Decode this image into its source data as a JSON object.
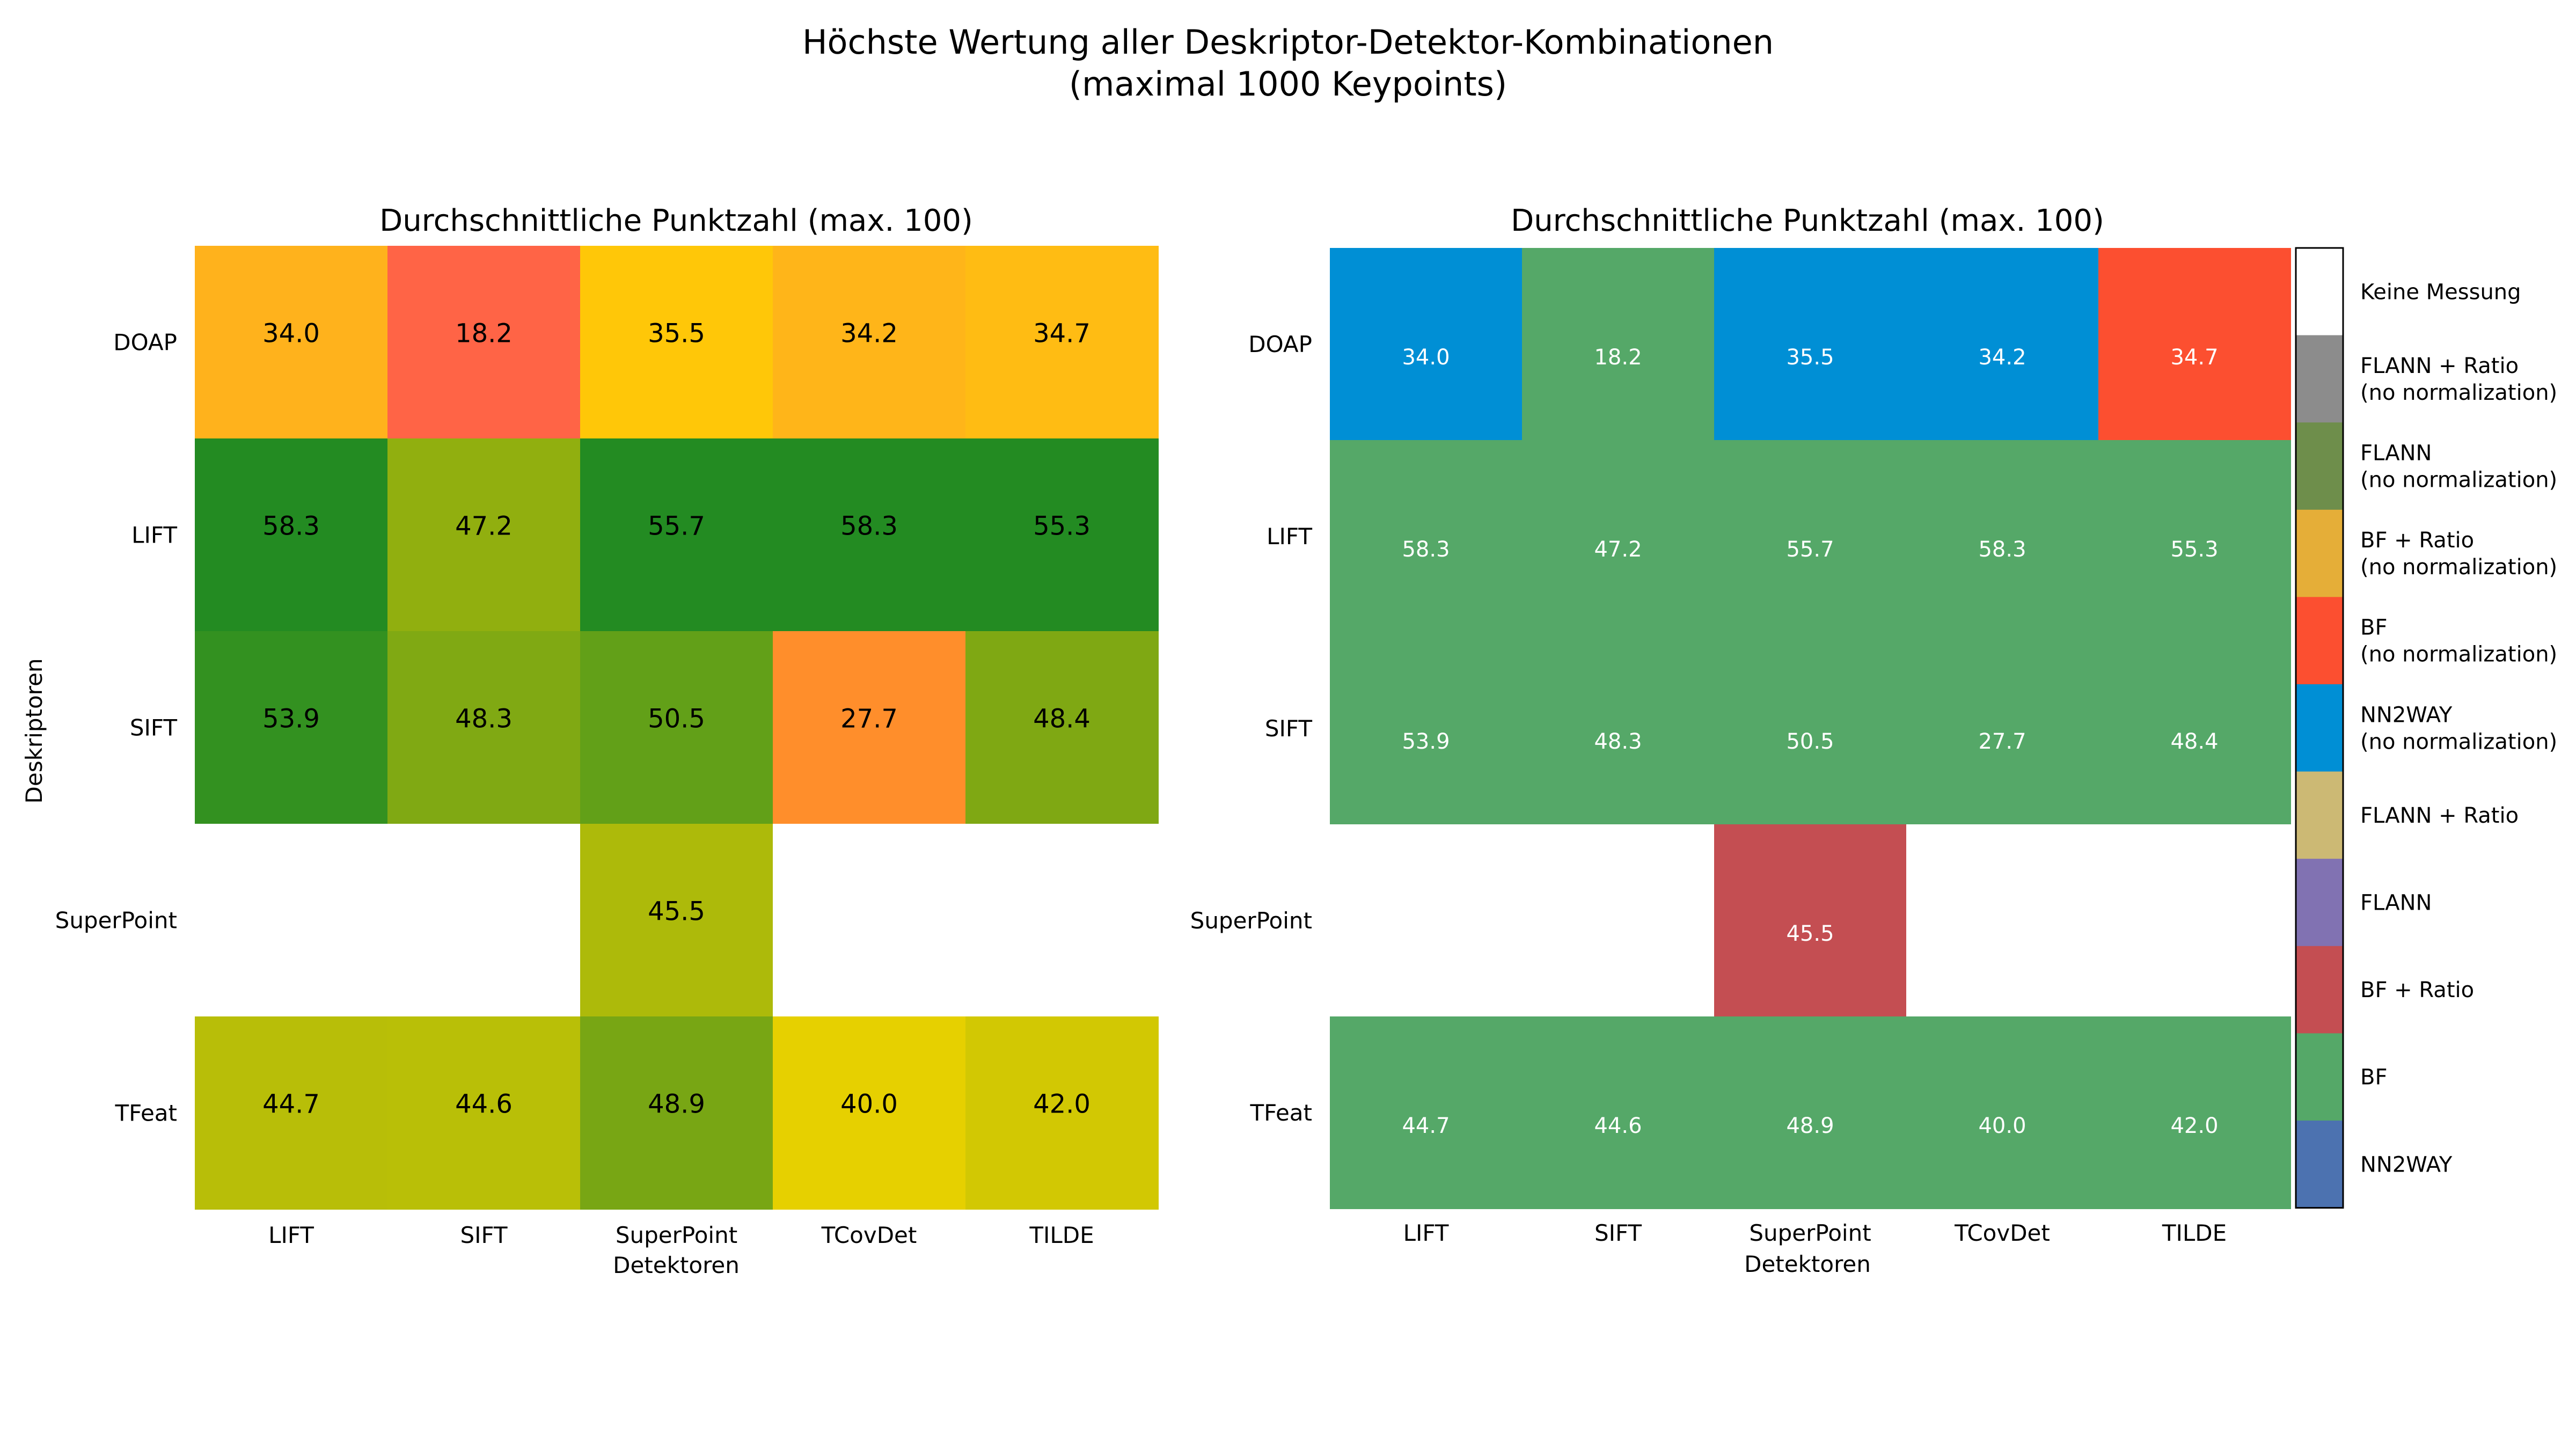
{
  "figure": {
    "title_line1": "Höchste Wertung aller Deskriptor-Detektor-Kombinationen",
    "title_line2": "(maximal 1000 Keypoints)"
  },
  "chart_data": [
    {
      "type": "heatmap",
      "title": "Durchschnittliche Punktzahl (max. 100)",
      "xlabel": "Detektoren",
      "ylabel": "Deskriptoren",
      "x": [
        "LIFT",
        "SIFT",
        "SuperPoint",
        "TCovDet",
        "TILDE"
      ],
      "y": [
        "DOAP",
        "LIFT",
        "SIFT",
        "SuperPoint",
        "TFeat"
      ],
      "values": [
        [
          34.0,
          18.2,
          35.5,
          34.2,
          34.7
        ],
        [
          58.3,
          47.2,
          55.7,
          58.3,
          55.3
        ],
        [
          53.9,
          48.3,
          50.5,
          27.7,
          48.4
        ],
        [
          null,
          null,
          45.5,
          null,
          null
        ],
        [
          44.7,
          44.6,
          48.9,
          40.0,
          42.0
        ]
      ],
      "labels": [
        [
          "34.0",
          "18.2",
          "35.5",
          "34.2",
          "34.7"
        ],
        [
          "58.3",
          "47.2",
          "55.7",
          "58.3",
          "55.3"
        ],
        [
          "53.9",
          "48.3",
          "50.5",
          "27.7",
          "48.4"
        ],
        [
          "",
          "",
          "45.5",
          "",
          ""
        ],
        [
          "44.7",
          "44.6",
          "48.9",
          "40.0",
          "42.0"
        ]
      ],
      "colormap": "red-yellow-green",
      "color_stops": [
        {
          "value": 18,
          "color": "#ff6347"
        },
        {
          "value": 28,
          "color": "#ff8f2a"
        },
        {
          "value": 34,
          "color": "#ffb21c"
        },
        {
          "value": 35.5,
          "color": "#ffc708"
        },
        {
          "value": 40,
          "color": "#e6d000"
        },
        {
          "value": 45,
          "color": "#b5bd08"
        },
        {
          "value": 48,
          "color": "#84aa12"
        },
        {
          "value": 52,
          "color": "#4e9a1c"
        },
        {
          "value": 55,
          "color": "#238b22"
        }
      ]
    },
    {
      "type": "heatmap",
      "title": "Durchschnittliche Punktzahl (max. 100)",
      "xlabel": "Detektoren",
      "x": [
        "LIFT",
        "SIFT",
        "SuperPoint",
        "TCovDet",
        "TILDE"
      ],
      "y": [
        "DOAP",
        "LIFT",
        "SIFT",
        "SuperPoint",
        "TFeat"
      ],
      "values": [
        [
          34.0,
          18.2,
          35.5,
          34.2,
          34.7
        ],
        [
          58.3,
          47.2,
          55.7,
          58.3,
          55.3
        ],
        [
          53.9,
          48.3,
          50.5,
          27.7,
          48.4
        ],
        [
          null,
          null,
          45.5,
          null,
          null
        ],
        [
          44.7,
          44.6,
          48.9,
          40.0,
          42.0
        ]
      ],
      "labels": [
        [
          "34.0",
          "18.2",
          "35.5",
          "34.2",
          "34.7"
        ],
        [
          "58.3",
          "47.2",
          "55.7",
          "58.3",
          "55.3"
        ],
        [
          "53.9",
          "48.3",
          "50.5",
          "27.7",
          "48.4"
        ],
        [
          "",
          "",
          "45.5",
          "",
          ""
        ],
        [
          "44.7",
          "44.6",
          "48.9",
          "40.0",
          "42.0"
        ]
      ],
      "categories_grid": [
        [
          5,
          9,
          5,
          5,
          4
        ],
        [
          9,
          9,
          9,
          9,
          9
        ],
        [
          9,
          9,
          9,
          9,
          9
        ],
        [
          0,
          0,
          8,
          0,
          0
        ],
        [
          9,
          9,
          9,
          9,
          9
        ]
      ],
      "legend": {
        "placement": "right",
        "entries": [
          {
            "label": "Keine Messung",
            "color": "#ffffff"
          },
          {
            "label": "FLANN + Ratio\n(no normalization)",
            "color": "#8c8c8c"
          },
          {
            "label": "FLANN\n(no normalization)",
            "color": "#6e8e4b"
          },
          {
            "label": "BF + Ratio\n(no normalization)",
            "color": "#e5ae38"
          },
          {
            "label": "BF\n(no normalization)",
            "color": "#fc4f30"
          },
          {
            "label": "NN2WAY\n(no normalization)",
            "color": "#008fd5"
          },
          {
            "label": "FLANN + Ratio",
            "color": "#ccb974"
          },
          {
            "label": "FLANN",
            "color": "#8172b2"
          },
          {
            "label": "BF + Ratio",
            "color": "#c44e52"
          },
          {
            "label": "BF",
            "color": "#55a868"
          },
          {
            "label": "NN2WAY",
            "color": "#4c72b0"
          }
        ]
      }
    }
  ]
}
